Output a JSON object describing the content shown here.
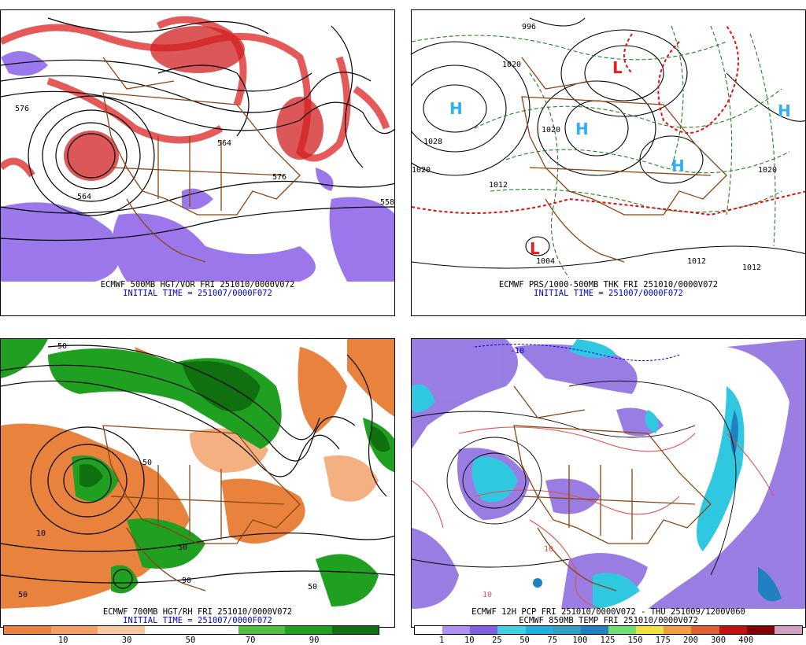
{
  "panels": [
    {
      "id": "p1",
      "caption1": "ECMWF 500MB HGT/VOR FRI 251010/0000V072",
      "caption2": "INITIAL TIME = 251007/0000F072",
      "contour_labels": [
        "576",
        "564",
        "564",
        "576",
        "558"
      ]
    },
    {
      "id": "p2",
      "caption1": "ECMWF PRS/1000-500MB THK FRI 251010/0000V072",
      "caption2": "INITIAL TIME = 251007/0000F072",
      "contour_labels": [
        "996",
        "1020",
        "1028",
        "1020",
        "1012",
        "1020",
        "1020",
        "1004",
        "1012",
        "1012"
      ],
      "pressure_centers": [
        "H",
        "H",
        "H",
        "H",
        "L",
        "L"
      ]
    },
    {
      "id": "p3",
      "caption1": "ECMWF 700MB HGT/RH FRI 251010/0000V072",
      "caption2": "INITIAL TIME = 251007/0000F072",
      "contour_labels": [
        "50",
        "50",
        "10",
        "50",
        "90",
        "50",
        "50"
      ]
    },
    {
      "id": "p4",
      "caption1": "ECMWF 12H PCP FRI 251010/0000V072 - THU 251009/1200V060",
      "caption2": "ECMWF 850MB TEMP FRI 251010/0000V072",
      "contour_labels": [
        "-10",
        "10",
        "10"
      ]
    }
  ],
  "legend_rh": {
    "colors": [
      "#e8823c",
      "#f0a060",
      "#f8c8a0",
      "#ffffff",
      "#ffffff",
      "#50c040",
      "#20a020",
      "#107010"
    ],
    "labels": [
      "10",
      "30",
      "50",
      "70",
      "90"
    ]
  },
  "legend_pcp": {
    "colors": [
      "#ffffff",
      "#b090f0",
      "#8060e0",
      "#40d0e0",
      "#20b0e0",
      "#30a0c0",
      "#2080c0",
      "#70e070",
      "#f0e040",
      "#f0a040",
      "#e06030",
      "#c01010",
      "#800000",
      "#d0a0c0"
    ],
    "labels": [
      "1",
      "10",
      "25",
      "50",
      "75",
      "100",
      "125",
      "150",
      "175",
      "200",
      "300",
      "400"
    ]
  },
  "colors": {
    "vorticity": "#e03030",
    "negvort": "#8050e0",
    "border": "#8b4513",
    "contour": "#000000",
    "thickness_warm": "#e01010",
    "thickness_cold": "#208020",
    "rh_dry": "#e8823c",
    "rh_moist": "#20a020",
    "pcp_purple": "#9070e0",
    "pcp_cyan": "#30c8e0",
    "temp_red": "#e05050"
  }
}
